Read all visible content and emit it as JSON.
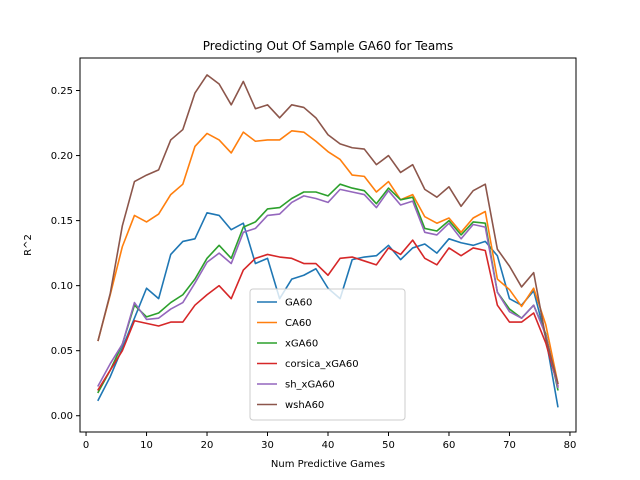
{
  "chart_data": {
    "type": "line",
    "title": "Predicting Out Of Sample GA60 for Teams",
    "xlabel": "Num Predictive Games",
    "ylabel": "R^2",
    "xlim": [
      -1,
      81
    ],
    "ylim": [
      -0.0125,
      0.275
    ],
    "xticks": [
      0,
      10,
      20,
      30,
      40,
      50,
      60,
      70,
      80
    ],
    "xtick_labels": [
      "0",
      "10",
      "20",
      "30",
      "40",
      "50",
      "60",
      "70",
      "80"
    ],
    "yticks": [
      0.0,
      0.05,
      0.1,
      0.15,
      0.2,
      0.25
    ],
    "ytick_labels": [
      "0.00",
      "0.05",
      "0.10",
      "0.15",
      "0.20",
      "0.25"
    ],
    "grid": false,
    "legend_position": "lower center",
    "x": [
      2,
      4,
      6,
      8,
      10,
      12,
      14,
      16,
      18,
      20,
      22,
      24,
      26,
      28,
      30,
      32,
      34,
      36,
      38,
      40,
      42,
      44,
      46,
      48,
      50,
      52,
      54,
      56,
      58,
      60,
      62,
      64,
      66,
      68,
      70,
      72,
      74,
      76,
      78
    ],
    "series": [
      {
        "name": "GA60",
        "color": "#1f77b4",
        "values": [
          0.012,
          0.03,
          0.052,
          0.075,
          0.098,
          0.09,
          0.124,
          0.134,
          0.136,
          0.156,
          0.154,
          0.143,
          0.148,
          0.117,
          0.121,
          0.09,
          0.105,
          0.108,
          0.113,
          0.098,
          0.09,
          0.12,
          0.122,
          0.123,
          0.131,
          0.12,
          0.129,
          0.132,
          0.125,
          0.136,
          0.133,
          0.131,
          0.134,
          0.123,
          0.09,
          0.085,
          0.096,
          0.06,
          0.007
        ]
      },
      {
        "name": "CA60",
        "color": "#ff7f0e",
        "values": [
          0.058,
          0.093,
          0.13,
          0.154,
          0.149,
          0.155,
          0.17,
          0.178,
          0.207,
          0.217,
          0.212,
          0.202,
          0.218,
          0.211,
          0.212,
          0.212,
          0.219,
          0.218,
          0.211,
          0.203,
          0.197,
          0.185,
          0.184,
          0.172,
          0.18,
          0.166,
          0.17,
          0.153,
          0.148,
          0.152,
          0.141,
          0.152,
          0.157,
          0.105,
          0.097,
          0.084,
          0.098,
          0.07,
          0.025
        ]
      },
      {
        "name": "xGA60",
        "color": "#2ca02c",
        "values": [
          0.018,
          0.035,
          0.055,
          0.085,
          0.076,
          0.079,
          0.087,
          0.093,
          0.105,
          0.121,
          0.131,
          0.121,
          0.145,
          0.149,
          0.159,
          0.16,
          0.167,
          0.172,
          0.172,
          0.169,
          0.178,
          0.175,
          0.173,
          0.163,
          0.175,
          0.166,
          0.168,
          0.144,
          0.142,
          0.15,
          0.139,
          0.149,
          0.148,
          0.095,
          0.082,
          0.075,
          0.085,
          0.063,
          0.02
        ]
      },
      {
        "name": "corsica_xGA60",
        "color": "#d62728",
        "values": [
          0.02,
          0.035,
          0.05,
          0.073,
          0.071,
          0.069,
          0.072,
          0.072,
          0.085,
          0.093,
          0.1,
          0.09,
          0.112,
          0.121,
          0.124,
          0.122,
          0.121,
          0.117,
          0.117,
          0.108,
          0.121,
          0.122,
          0.119,
          0.116,
          0.129,
          0.124,
          0.135,
          0.121,
          0.116,
          0.129,
          0.123,
          0.129,
          0.127,
          0.085,
          0.072,
          0.072,
          0.079,
          0.056,
          0.023
        ]
      },
      {
        "name": "sh_xGA60",
        "color": "#9467bd",
        "values": [
          0.023,
          0.04,
          0.055,
          0.087,
          0.074,
          0.075,
          0.082,
          0.087,
          0.102,
          0.118,
          0.125,
          0.117,
          0.141,
          0.144,
          0.154,
          0.155,
          0.164,
          0.169,
          0.167,
          0.164,
          0.174,
          0.172,
          0.17,
          0.16,
          0.173,
          0.162,
          0.165,
          0.141,
          0.139,
          0.148,
          0.136,
          0.147,
          0.145,
          0.095,
          0.08,
          0.075,
          0.085,
          0.062,
          0.022
        ]
      },
      {
        "name": "wshA60",
        "color": "#8c564b",
        "values": [
          0.058,
          0.094,
          0.146,
          0.18,
          0.185,
          0.189,
          0.212,
          0.22,
          0.248,
          0.262,
          0.255,
          0.239,
          0.257,
          0.236,
          0.239,
          0.229,
          0.239,
          0.237,
          0.229,
          0.216,
          0.209,
          0.206,
          0.205,
          0.193,
          0.2,
          0.187,
          0.193,
          0.174,
          0.168,
          0.176,
          0.161,
          0.173,
          0.178,
          0.128,
          0.115,
          0.099,
          0.11,
          0.06,
          0.025
        ]
      }
    ]
  }
}
